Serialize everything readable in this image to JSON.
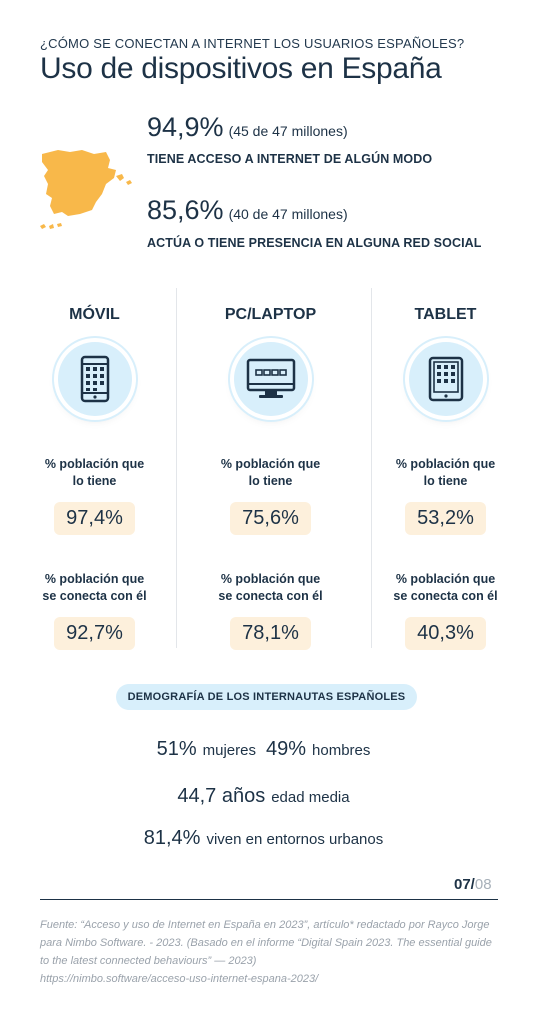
{
  "header": {
    "kicker": "¿CÓMO SE CONECTAN A INTERNET LOS USUARIOS ESPAÑOLES?",
    "title": "Uso de dispositivos en España"
  },
  "map_icon": "spain-map-icon",
  "stats": [
    {
      "percent": "94,9%",
      "detail": "(45 de 47 millones)",
      "caption": "TIENE ACCESO A INTERNET DE ALGÚN MODO"
    },
    {
      "percent": "85,6%",
      "detail": "(40 de 47 millones)",
      "caption": "ACTÚA O TIENE PRESENCIA EN ALGUNA RED SOCIAL"
    }
  ],
  "devices": [
    {
      "name": "MÓVIL",
      "icon": "mobile-phone-icon",
      "own_label_1": "% población que",
      "own_label_2": "lo tiene",
      "own_value": "97,4%",
      "connect_label_1": "% población que",
      "connect_label_2": "se conecta con él",
      "connect_value": "92,7%"
    },
    {
      "name": "PC/LAPTOP",
      "icon": "monitor-icon",
      "own_label_1": "% población que",
      "own_label_2": "lo tiene",
      "own_value": "75,6%",
      "connect_label_1": "% población que",
      "connect_label_2": "se conecta con él",
      "connect_value": "78,1%"
    },
    {
      "name": "TABLET",
      "icon": "tablet-icon",
      "own_label_1": "% población que",
      "own_label_2": "lo tiene",
      "own_value": "53,2%",
      "connect_label_1": "% población que",
      "connect_label_2": "se conecta con él",
      "connect_value": "40,3%"
    }
  ],
  "demography": {
    "heading": "DEMOGRAFÍA DE LOS INTERNAUTAS ESPAÑOLES",
    "women_value": "51%",
    "women_label": "mujeres",
    "men_value": "49%",
    "men_label": "hombres",
    "age_value": "44,7 años",
    "age_label": "edad media",
    "urban_value": "81,4%",
    "urban_label": "viven en entornos urbanos"
  },
  "footer": {
    "page": "07/",
    "total": "08",
    "source_1": "Fuente: “Acceso y uso de Internet en España en 2023”, artículo* redactado por Rayco Jorge",
    "source_2": "para Nimbo Software. - 2023. (Basado en el informe “Digital Spain 2023. The essential guide",
    "source_3": "to the latest connected behaviours” — 2023)",
    "source_4": "https://nimbo.software/acceso-uso-internet-espana-2023/"
  },
  "colors": {
    "ink": "#1d3246",
    "accent_light_blue": "#d8effb",
    "pill_bg": "#fdf0dc",
    "map_fill": "#f8b84a"
  }
}
